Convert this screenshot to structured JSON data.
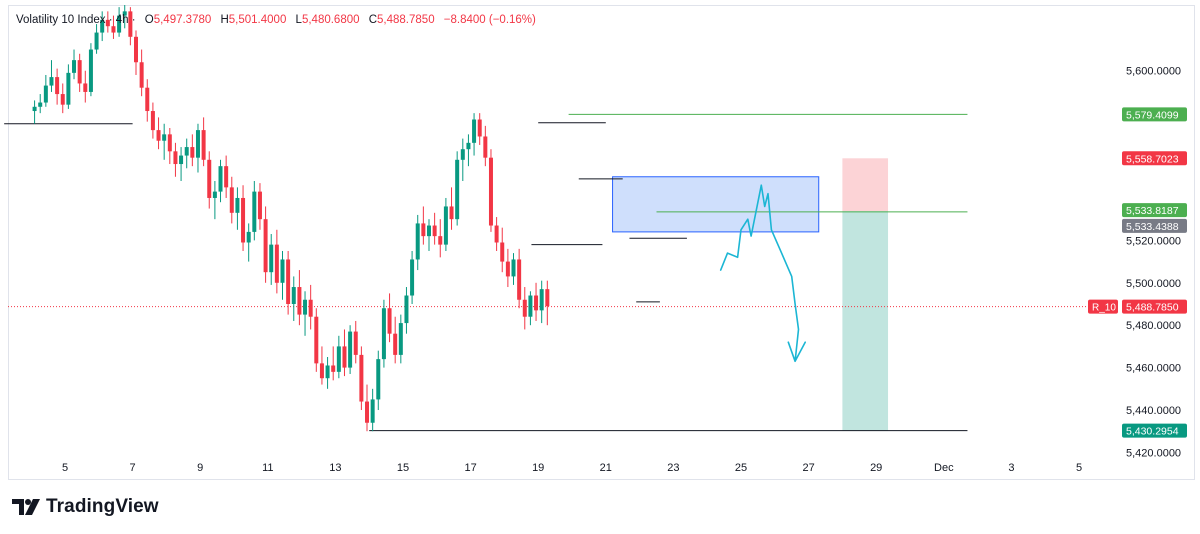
{
  "symbol": {
    "name": "Volatility 10 Index · 4h ·",
    "ticker": "R_10"
  },
  "ohlc": {
    "o_label": "O",
    "o": "5,497.3780",
    "h_label": "H",
    "h": "5,501.4000",
    "l_label": "L",
    "l": "5,480.6800",
    "c_label": "C",
    "c": "5,488.7850",
    "change": "−8.8400 (−0.16%)"
  },
  "branding": {
    "logo_text": "TradingView"
  },
  "colors": {
    "up": "#089981",
    "down": "#f23645",
    "accent_line": "#4caf50",
    "zone": "#bbd2fb",
    "drawing": "#1bb6d4"
  },
  "chart_data": {
    "type": "candlestick",
    "timeframe": "4h",
    "x_tick_labels": [
      "5",
      "7",
      "9",
      "11",
      "13",
      "15",
      "17",
      "19",
      "21",
      "23",
      "25",
      "27",
      "29",
      "Dec",
      "3",
      "5"
    ],
    "y_tick_labels": [
      "5,600.0000",
      "5,520.0000",
      "5,500.0000",
      "5,480.0000",
      "5,460.0000",
      "5,440.0000",
      "5,420.0000"
    ],
    "y_ticks": [
      5600,
      5520,
      5500,
      5480,
      5460,
      5440,
      5420
    ],
    "ylim": [
      5407,
      5631
    ],
    "x_range_days": [
      3.2,
      5.6
    ],
    "price_labels": [
      {
        "text": "5,579.4099",
        "value": 5579.4099,
        "color": "#4caf50"
      },
      {
        "text": "5,558.7023",
        "value": 5558.7023,
        "color": "#f23645"
      },
      {
        "text": "5,533.8187",
        "value": 5533.8187,
        "color": "#4caf50"
      },
      {
        "text": "5,533.4388",
        "value": 5533.4388,
        "color": "#787b86"
      },
      {
        "text": "5,488.7850",
        "value": 5488.785,
        "color": "#f23645"
      },
      {
        "text": "5,430.2954",
        "value": 5430.2954,
        "color": "#089981"
      }
    ],
    "current_price": 5488.785,
    "candle_start_day": 4.1,
    "candle_step_days": 0.1667,
    "candles": [
      [
        5581,
        5586,
        5575,
        5583
      ],
      [
        5583,
        5589,
        5580,
        5585
      ],
      [
        5585,
        5598,
        5583,
        5593
      ],
      [
        5593,
        5605,
        5590,
        5597
      ],
      [
        5597,
        5601,
        5584,
        5589
      ],
      [
        5589,
        5594,
        5580,
        5584
      ],
      [
        5584,
        5603,
        5582,
        5599
      ],
      [
        5599,
        5610,
        5596,
        5605
      ],
      [
        5605,
        5608,
        5590,
        5594
      ],
      [
        5594,
        5600,
        5585,
        5590
      ],
      [
        5590,
        5613,
        5588,
        5610
      ],
      [
        5610,
        5622,
        5608,
        5618
      ],
      [
        5618,
        5628,
        5614,
        5624
      ],
      [
        5624,
        5628,
        5618,
        5621
      ],
      [
        5621,
        5626,
        5615,
        5618
      ],
      [
        5618,
        5630,
        5616,
        5626
      ],
      [
        5626,
        5631,
        5620,
        5628
      ],
      [
        5628,
        5630,
        5612,
        5616
      ],
      [
        5616,
        5619,
        5598,
        5604
      ],
      [
        5604,
        5610,
        5588,
        5592
      ],
      [
        5592,
        5596,
        5576,
        5581
      ],
      [
        5581,
        5585,
        5568,
        5572
      ],
      [
        5572,
        5578,
        5563,
        5567
      ],
      [
        5567,
        5575,
        5558,
        5570
      ],
      [
        5570,
        5573,
        5556,
        5562
      ],
      [
        5562,
        5566,
        5550,
        5556
      ],
      [
        5556,
        5564,
        5548,
        5560
      ],
      [
        5560,
        5568,
        5554,
        5564
      ],
      [
        5564,
        5570,
        5555,
        5559
      ],
      [
        5559,
        5575,
        5552,
        5572
      ],
      [
        5572,
        5578,
        5555,
        5558
      ],
      [
        5558,
        5562,
        5535,
        5540
      ],
      [
        5540,
        5548,
        5530,
        5543
      ],
      [
        5543,
        5558,
        5538,
        5555
      ],
      [
        5555,
        5560,
        5540,
        5545
      ],
      [
        5545,
        5550,
        5528,
        5533
      ],
      [
        5533,
        5545,
        5525,
        5540
      ],
      [
        5540,
        5546,
        5515,
        5519
      ],
      [
        5519,
        5528,
        5510,
        5524
      ],
      [
        5524,
        5548,
        5520,
        5543
      ],
      [
        5543,
        5547,
        5525,
        5530
      ],
      [
        5530,
        5536,
        5500,
        5505
      ],
      [
        5505,
        5523,
        5499,
        5518
      ],
      [
        5518,
        5525,
        5495,
        5500
      ],
      [
        5500,
        5515,
        5492,
        5511
      ],
      [
        5511,
        5515,
        5485,
        5490
      ],
      [
        5490,
        5503,
        5482,
        5498
      ],
      [
        5498,
        5506,
        5480,
        5485
      ],
      [
        5485,
        5496,
        5475,
        5492
      ],
      [
        5492,
        5499,
        5478,
        5484
      ],
      [
        5484,
        5488,
        5458,
        5462
      ],
      [
        5462,
        5470,
        5452,
        5455
      ],
      [
        5455,
        5465,
        5450,
        5461
      ],
      [
        5461,
        5470,
        5454,
        5458
      ],
      [
        5458,
        5475,
        5455,
        5470
      ],
      [
        5470,
        5478,
        5456,
        5460
      ],
      [
        5460,
        5480,
        5457,
        5477
      ],
      [
        5477,
        5482,
        5462,
        5466
      ],
      [
        5466,
        5470,
        5440,
        5444
      ],
      [
        5444,
        5452,
        5430,
        5434
      ],
      [
        5434,
        5450,
        5430,
        5445
      ],
      [
        5445,
        5468,
        5440,
        5464
      ],
      [
        5464,
        5492,
        5460,
        5488
      ],
      [
        5488,
        5495,
        5472,
        5476
      ],
      [
        5476,
        5484,
        5462,
        5466
      ],
      [
        5466,
        5485,
        5462,
        5481
      ],
      [
        5481,
        5498,
        5476,
        5494
      ],
      [
        5494,
        5515,
        5490,
        5511
      ],
      [
        5511,
        5532,
        5506,
        5528
      ],
      [
        5528,
        5536,
        5518,
        5522
      ],
      [
        5522,
        5530,
        5515,
        5527
      ],
      [
        5527,
        5533,
        5518,
        5522
      ],
      [
        5522,
        5530,
        5512,
        5518
      ],
      [
        5518,
        5540,
        5515,
        5536
      ],
      [
        5536,
        5545,
        5525,
        5530
      ],
      [
        5530,
        5562,
        5527,
        5558
      ],
      [
        5558,
        5568,
        5548,
        5563
      ],
      [
        5563,
        5570,
        5555,
        5566
      ],
      [
        5566,
        5580,
        5560,
        5577
      ],
      [
        5577,
        5580,
        5565,
        5569
      ],
      [
        5569,
        5574,
        5555,
        5559
      ],
      [
        5559,
        5563,
        5524,
        5527
      ],
      [
        5527,
        5531,
        5515,
        5519
      ],
      [
        5519,
        5526,
        5505,
        5510
      ],
      [
        5510,
        5516,
        5498,
        5503
      ],
      [
        5503,
        5514,
        5499,
        5511
      ],
      [
        5511,
        5516,
        5488,
        5492
      ],
      [
        5492,
        5498,
        5478,
        5484
      ],
      [
        5484,
        5496,
        5480,
        5494
      ],
      [
        5494,
        5500,
        5482,
        5487
      ],
      [
        5487,
        5501,
        5481,
        5497
      ],
      [
        5497,
        5501,
        5480,
        5489
      ]
    ],
    "horizontal_lines": [
      {
        "from_day": 3.2,
        "to_day": 7.0,
        "value": 5575,
        "color": "#131722"
      },
      {
        "from_day": 19.0,
        "to_day": 21.0,
        "value": 5575.5,
        "color": "#131722"
      },
      {
        "from_day": 19.9,
        "to_day": 31.7,
        "value": 5579.4099,
        "color": "#4caf50"
      },
      {
        "from_day": 20.2,
        "to_day": 21.5,
        "value": 5549,
        "color": "#131722"
      },
      {
        "from_day": 18.8,
        "to_day": 20.9,
        "value": 5518,
        "color": "#131722"
      },
      {
        "from_day": 21.7,
        "to_day": 23.4,
        "value": 5521,
        "color": "#131722"
      },
      {
        "from_day": 21.9,
        "to_day": 22.6,
        "value": 5491,
        "color": "#131722"
      },
      {
        "from_day": 22.5,
        "to_day": 31.7,
        "value": 5533.4388,
        "color": "#4caf50"
      },
      {
        "from_day": 14.0,
        "to_day": 31.7,
        "value": 5430.2954,
        "color": "#131722"
      }
    ],
    "zone": {
      "from_day": 21.2,
      "to_day": 27.3,
      "top": 5550,
      "bottom": 5524
    },
    "position": {
      "from_day": 28.0,
      "to_day": 29.35,
      "stop": 5558.7023,
      "entry": 5533.8187,
      "target": 5430.2954
    },
    "drawing_path": [
      [
        24.4,
        5506
      ],
      [
        24.6,
        5514
      ],
      [
        24.9,
        5512
      ],
      [
        25.0,
        5525
      ],
      [
        25.2,
        5530
      ],
      [
        25.3,
        5522
      ],
      [
        25.5,
        5538
      ],
      [
        25.6,
        5546
      ],
      [
        25.7,
        5536
      ],
      [
        25.8,
        5542
      ],
      [
        25.9,
        5525
      ],
      [
        26.2,
        5514
      ],
      [
        26.5,
        5503
      ],
      [
        26.6,
        5490
      ],
      [
        26.7,
        5478
      ],
      [
        26.6,
        5463
      ],
      [
        26.4,
        5472
      ],
      [
        26.6,
        5463
      ],
      [
        26.9,
        5472
      ]
    ]
  }
}
